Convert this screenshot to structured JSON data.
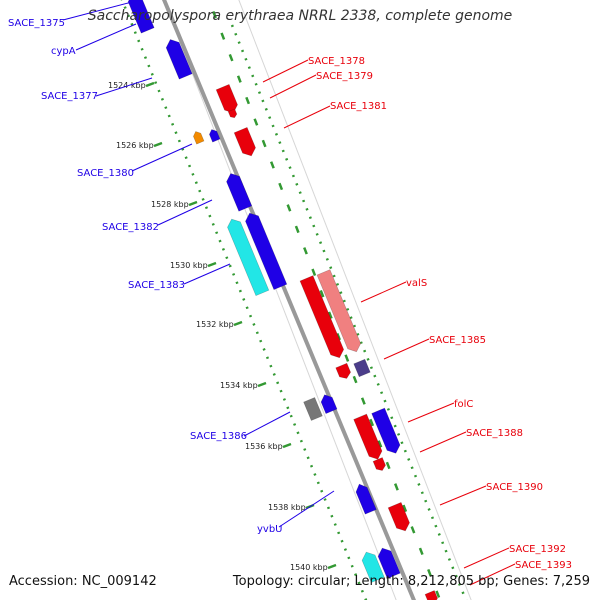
{
  "viewer": {
    "title": "Saccharopolyspora erythraea NRRL 2338, complete genome",
    "accession": "Accession: NC_009142",
    "summary": "Topology: circular; Length: 8,212,805 bp; Genes: 7,259"
  },
  "colors": {
    "forward_gene": "#e8000b",
    "reverse_gene": "#1f00e6",
    "light_red": "#f08080",
    "cyan": "#22e6e6",
    "orange": "#f28a00",
    "gray": "#777777",
    "purple": "#4b3d8a",
    "ticks": "#339933",
    "backbone": "#999999"
  },
  "scale": [
    {
      "label": "1524 kbp"
    },
    {
      "label": "1526 kbp"
    },
    {
      "label": "1528 kbp"
    },
    {
      "label": "1530 kbp"
    },
    {
      "label": "1532 kbp"
    },
    {
      "label": "1534 kbp"
    },
    {
      "label": "1536 kbp"
    },
    {
      "label": "1538 kbp"
    },
    {
      "label": "1540 kbp"
    }
  ],
  "genes": {
    "left": [
      {
        "name": "SACE_1375"
      },
      {
        "name": "cypA"
      },
      {
        "name": "SACE_1377"
      },
      {
        "name": "SACE_1380"
      },
      {
        "name": "SACE_1382"
      },
      {
        "name": "SACE_1383"
      },
      {
        "name": "SACE_1386"
      },
      {
        "name": "yvbU"
      }
    ],
    "right": [
      {
        "name": "SACE_1378"
      },
      {
        "name": "SACE_1379"
      },
      {
        "name": "SACE_1381"
      },
      {
        "name": "valS"
      },
      {
        "name": "SACE_1385"
      },
      {
        "name": "folC"
      },
      {
        "name": "SACE_1388"
      },
      {
        "name": "SACE_1390"
      },
      {
        "name": "SACE_1392"
      },
      {
        "name": "SACE_1393"
      }
    ]
  }
}
